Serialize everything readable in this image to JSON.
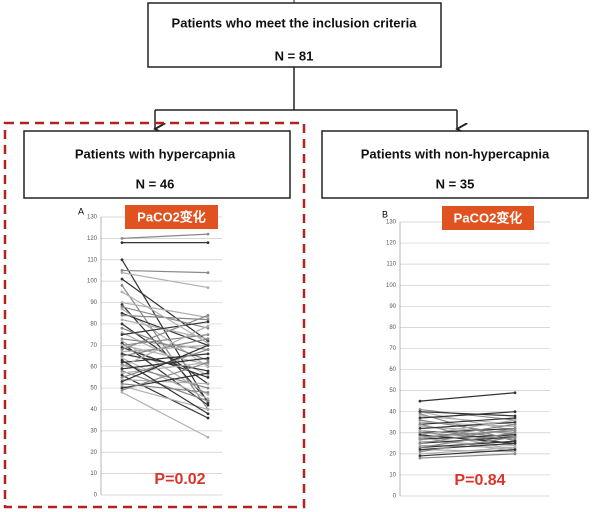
{
  "nodes": [
    {
      "label": "Patients who meet the inclusion criteria",
      "count": "N = 81"
    },
    {
      "label": "Patients with hypercapnia",
      "count": "N = 46"
    },
    {
      "label": "Patients with non-hypercapnia",
      "count": "N = 35"
    }
  ],
  "chart_data": [
    {
      "type": "line",
      "panel_label": "A",
      "title": "PaCO2变化",
      "annotation": "P=0.02",
      "ylim": [
        0,
        130
      ],
      "yticks": [
        0,
        10,
        20,
        30,
        40,
        50,
        60,
        70,
        80,
        90,
        100,
        110,
        120,
        130
      ],
      "grid": true,
      "colors": [
        "#333333",
        "#888888",
        "#b0b0b0"
      ],
      "series": [
        {
          "values": [
            110,
            43
          ]
        },
        {
          "values": [
            105,
            104
          ]
        },
        {
          "values": [
            104,
            97
          ]
        },
        {
          "values": [
            101,
            72
          ]
        },
        {
          "values": [
            98,
            40
          ]
        },
        {
          "values": [
            90,
            83
          ]
        },
        {
          "values": [
            89,
            44
          ]
        },
        {
          "values": [
            88,
            78
          ]
        },
        {
          "values": [
            87,
            60
          ]
        },
        {
          "values": [
            85,
            70
          ]
        },
        {
          "values": [
            84,
            82
          ]
        },
        {
          "values": [
            82,
            73
          ]
        },
        {
          "values": [
            80,
            52
          ]
        },
        {
          "values": [
            78,
            63
          ]
        },
        {
          "values": [
            76,
            56
          ]
        },
        {
          "values": [
            75,
            81
          ]
        },
        {
          "values": [
            73,
            68
          ]
        },
        {
          "values": [
            72,
            47
          ]
        },
        {
          "values": [
            71,
            42
          ]
        },
        {
          "values": [
            70,
            75
          ]
        },
        {
          "values": [
            70,
            61
          ]
        },
        {
          "values": [
            69,
            55
          ]
        },
        {
          "values": [
            68,
            84
          ]
        },
        {
          "values": [
            67,
            70
          ]
        },
        {
          "values": [
            66,
            58
          ]
        },
        {
          "values": [
            65,
            73
          ]
        },
        {
          "values": [
            64,
            45
          ]
        },
        {
          "values": [
            62,
            66
          ]
        },
        {
          "values": [
            61,
            50
          ]
        },
        {
          "values": [
            60,
            79
          ]
        },
        {
          "values": [
            59,
            64
          ]
        },
        {
          "values": [
            58,
            44
          ]
        },
        {
          "values": [
            57,
            62
          ]
        },
        {
          "values": [
            56,
            36
          ]
        },
        {
          "values": [
            55,
            68
          ]
        },
        {
          "values": [
            54,
            52
          ]
        },
        {
          "values": [
            53,
            70
          ]
        },
        {
          "values": [
            52,
            48
          ]
        },
        {
          "values": [
            51,
            40
          ]
        },
        {
          "values": [
            50,
            57
          ]
        },
        {
          "values": [
            49,
            62
          ]
        },
        {
          "values": [
            48,
            27
          ]
        },
        {
          "values": [
            118,
            118
          ]
        },
        {
          "values": [
            120,
            122
          ]
        },
        {
          "values": [
            95,
            71
          ]
        },
        {
          "values": [
            63,
            38
          ]
        }
      ]
    },
    {
      "type": "line",
      "panel_label": "B",
      "title": "PaCO2变化",
      "annotation": "P=0.84",
      "ylim": [
        0,
        130
      ],
      "yticks": [
        0,
        10,
        20,
        30,
        40,
        50,
        60,
        70,
        80,
        90,
        100,
        110,
        120,
        130
      ],
      "grid": true,
      "colors": [
        "#333333",
        "#888888",
        "#b0b0b0"
      ],
      "series": [
        {
          "values": [
            45,
            49
          ]
        },
        {
          "values": [
            41,
            36
          ]
        },
        {
          "values": [
            40,
            31
          ]
        },
        {
          "values": [
            40,
            38
          ]
        },
        {
          "values": [
            39,
            26
          ]
        },
        {
          "values": [
            38,
            34
          ]
        },
        {
          "values": [
            37,
            40
          ]
        },
        {
          "values": [
            36,
            29
          ]
        },
        {
          "values": [
            35,
            33
          ]
        },
        {
          "values": [
            34,
            37
          ]
        },
        {
          "values": [
            34,
            24
          ]
        },
        {
          "values": [
            33,
            30
          ]
        },
        {
          "values": [
            32,
            35
          ]
        },
        {
          "values": [
            31,
            28
          ]
        },
        {
          "values": [
            31,
            22
          ]
        },
        {
          "values": [
            30,
            32
          ]
        },
        {
          "values": [
            30,
            27
          ]
        },
        {
          "values": [
            29,
            36
          ]
        },
        {
          "values": [
            29,
            25
          ]
        },
        {
          "values": [
            28,
            31
          ]
        },
        {
          "values": [
            28,
            21
          ]
        },
        {
          "values": [
            27,
            29
          ]
        },
        {
          "values": [
            27,
            34
          ]
        },
        {
          "values": [
            26,
            24
          ]
        },
        {
          "values": [
            25,
            28
          ]
        },
        {
          "values": [
            25,
            32
          ]
        },
        {
          "values": [
            24,
            23
          ]
        },
        {
          "values": [
            23,
            26
          ]
        },
        {
          "values": [
            23,
            30
          ]
        },
        {
          "values": [
            22,
            21
          ]
        },
        {
          "values": [
            22,
            25
          ]
        },
        {
          "values": [
            21,
            28
          ]
        },
        {
          "values": [
            20,
            23
          ]
        },
        {
          "values": [
            19,
            22
          ]
        },
        {
          "values": [
            18,
            20
          ]
        }
      ]
    }
  ]
}
